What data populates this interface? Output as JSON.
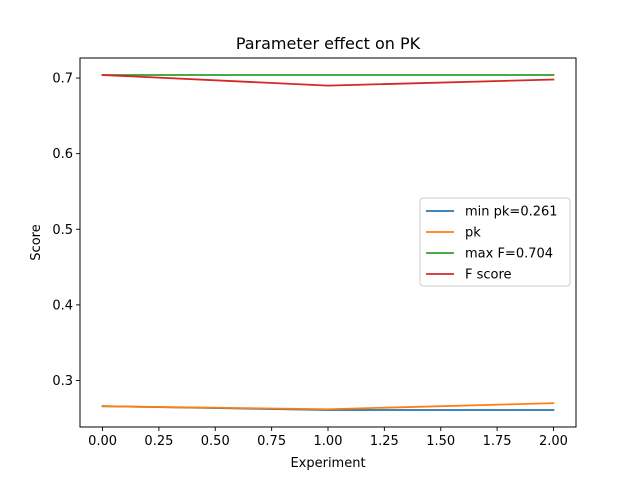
{
  "chart_data": {
    "type": "line",
    "title": "Parameter effect on PK",
    "xlabel": "Experiment",
    "ylabel": "Score",
    "xlim": [
      -0.1,
      2.1
    ],
    "ylim": [
      0.2385,
      0.7265
    ],
    "xticks": [
      0.0,
      0.25,
      0.5,
      0.75,
      1.0,
      1.25,
      1.5,
      1.75,
      2.0
    ],
    "xtick_labels": [
      "0.00",
      "0.25",
      "0.50",
      "0.75",
      "1.00",
      "1.25",
      "1.50",
      "1.75",
      "2.00"
    ],
    "yticks": [
      0.3,
      0.4,
      0.5,
      0.6,
      0.7
    ],
    "ytick_labels": [
      "0.3",
      "0.4",
      "0.5",
      "0.6",
      "0.7"
    ],
    "grid": false,
    "legend_position": "center-right",
    "x": [
      0,
      1,
      2
    ],
    "series": [
      {
        "name": "min pk=0.261",
        "color": "#1f77b4",
        "values": [
          0.266,
          0.261,
          0.261
        ]
      },
      {
        "name": "pk",
        "color": "#ff7f0e",
        "values": [
          0.266,
          0.262,
          0.27
        ]
      },
      {
        "name": "max F=0.704",
        "color": "#2ca02c",
        "values": [
          0.704,
          0.704,
          0.704
        ]
      },
      {
        "name": "F score",
        "color": "#d62728",
        "values": [
          0.704,
          0.69,
          0.698
        ]
      }
    ]
  }
}
